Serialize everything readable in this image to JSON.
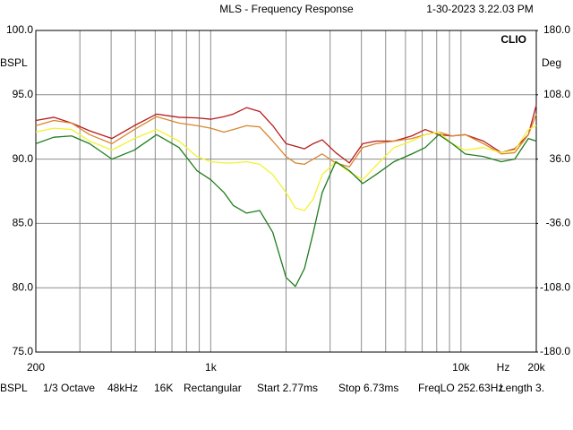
{
  "chart_data": {
    "type": "line",
    "title": "MLS - Frequency Response",
    "timestamp": "1-30-2023 3.22.03 PM",
    "brand": "CLIO",
    "ylabel": "BSPL",
    "y2label": "Deg",
    "xlabel": "Hz",
    "xscale": "log",
    "grid": true,
    "xlim": [
      200,
      20000
    ],
    "xticks": [
      200,
      {
        "value": 1000,
        "label": "1k"
      },
      {
        "value": 10000,
        "label": "10k"
      },
      {
        "value": 20000,
        "label": "20k"
      }
    ],
    "xgrid": [
      300,
      400,
      500,
      600,
      700,
      800,
      900,
      2000,
      3000,
      4000,
      5000,
      6000,
      7000,
      8000,
      9000
    ],
    "ylim": [
      75,
      100
    ],
    "yticks": [
      {
        "value": 75,
        "label": "75.0"
      },
      {
        "value": 80,
        "label": "80.0"
      },
      {
        "value": 85,
        "label": "85.0"
      },
      {
        "value": 90,
        "label": "90.0"
      },
      {
        "value": 95,
        "label": "95.0"
      },
      {
        "value": 100,
        "label": "100.0"
      }
    ],
    "y2lim": [
      -180,
      180
    ],
    "y2ticks": [
      {
        "value": -180,
        "label": "-180.0"
      },
      {
        "value": -108,
        "label": "-108.0"
      },
      {
        "value": -36,
        "label": "-36.0"
      },
      {
        "value": 36,
        "label": "36.0"
      },
      {
        "value": 108,
        "label": "108.0"
      },
      {
        "value": 180,
        "label": "180.0"
      }
    ],
    "x": [
      200,
      236,
      278,
      328,
      403,
      495,
      608,
      747,
      881,
      1000,
      1130,
      1230,
      1390,
      1570,
      1770,
      2000,
      2180,
      2370,
      2570,
      2790,
      3160,
      3580,
      4050,
      4580,
      5400,
      6360,
      7200,
      8150,
      9220,
      10400,
      12300,
      14500,
      16400,
      18600,
      20000
    ],
    "series": [
      {
        "color": "#b81c1c",
        "values": [
          93.0,
          93.25,
          92.8,
          92.2,
          91.6,
          92.6,
          93.5,
          93.25,
          93.2,
          93.1,
          93.3,
          93.5,
          94.0,
          93.7,
          92.6,
          91.2,
          91.0,
          90.8,
          91.2,
          91.5,
          90.5,
          89.7,
          91.2,
          91.4,
          91.4,
          91.8,
          92.3,
          91.9,
          91.8,
          91.9,
          91.4,
          90.5,
          90.8,
          91.9,
          94.2
        ]
      },
      {
        "color": "#d8862e",
        "values": [
          92.6,
          93.0,
          92.8,
          91.9,
          91.2,
          92.3,
          93.3,
          92.8,
          92.6,
          92.4,
          92.1,
          92.3,
          92.6,
          92.5,
          91.4,
          90.2,
          89.7,
          89.6,
          90.0,
          90.4,
          89.7,
          89.4,
          90.9,
          91.2,
          91.4,
          91.6,
          91.9,
          92.1,
          91.8,
          91.9,
          91.2,
          90.4,
          90.5,
          91.9,
          93.5
        ]
      },
      {
        "color": "#f2f230",
        "values": [
          92.1,
          92.4,
          92.3,
          91.4,
          90.7,
          91.6,
          92.3,
          91.4,
          90.2,
          89.8,
          89.7,
          89.7,
          89.8,
          89.6,
          88.8,
          87.4,
          86.2,
          86.0,
          86.9,
          88.8,
          89.8,
          89.0,
          88.4,
          89.5,
          90.9,
          91.4,
          91.9,
          92.1,
          91.2,
          90.7,
          90.9,
          90.5,
          90.7,
          92.3,
          92.6
        ]
      },
      {
        "color": "#1e7d1e",
        "values": [
          91.2,
          91.7,
          91.8,
          91.2,
          90.0,
          90.7,
          91.9,
          90.9,
          89.1,
          88.4,
          87.4,
          86.4,
          85.8,
          86.0,
          84.3,
          80.8,
          80.1,
          81.5,
          84.3,
          87.4,
          89.8,
          89.1,
          88.1,
          88.8,
          89.8,
          90.4,
          90.9,
          91.9,
          91.2,
          90.4,
          90.2,
          89.8,
          90.0,
          91.6,
          91.4
        ]
      }
    ],
    "footer": [
      "BSPL",
      "1/3 Octave",
      "48kHz",
      "16K",
      "Rectangular",
      "Start 2.77ms",
      "Stop 6.73ms",
      "FreqLO 252.63Hz",
      "Length 3."
    ]
  }
}
